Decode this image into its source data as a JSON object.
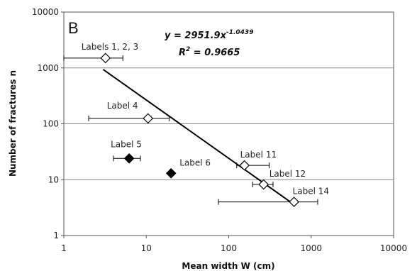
{
  "chart_data": {
    "type": "scatter",
    "panel_label": "B",
    "xlabel": "Mean width W (cm)",
    "ylabel": "Number of fractures n",
    "x_scale": "log",
    "y_scale": "log",
    "xlim": [
      1,
      10000
    ],
    "ylim": [
      1,
      10000
    ],
    "x_ticks": [
      "1",
      "10",
      "100",
      "1000",
      "10000"
    ],
    "y_ticks": [
      "1",
      "10",
      "100",
      "1000",
      "10000"
    ],
    "grid": "horizontal",
    "equation": {
      "y_prefix": "y = 2951.9x",
      "y_exponent": "-1.0439",
      "r_prefix": "R",
      "r_exponent": "2",
      "r_value": " = 0.9665"
    },
    "points": [
      {
        "label": "Labels 1, 2, 3",
        "x": 3.2,
        "y": 1500,
        "xerr": [
          1,
          5.2
        ],
        "filled": false
      },
      {
        "label": "Label 4",
        "x": 10.5,
        "y": 125,
        "xerr": [
          2,
          19
        ],
        "filled": false
      },
      {
        "label": "Label 5",
        "x": 6.2,
        "y": 24,
        "xerr": [
          4,
          8.5
        ],
        "filled": true
      },
      {
        "label": "Label 6",
        "x": 20,
        "y": 13,
        "xerr": null,
        "filled": true
      },
      {
        "label": "Label 11",
        "x": 155,
        "y": 18,
        "xerr": [
          125,
          310
        ],
        "filled": false
      },
      {
        "label": "Label 12",
        "x": 265,
        "y": 8.2,
        "xerr": [
          195,
          345
        ],
        "filled": false
      },
      {
        "label": "Label 14",
        "x": 620,
        "y": 4,
        "xerr": [
          75,
          1200
        ],
        "filled": false
      }
    ],
    "fit_line": {
      "x_start": 3,
      "x_end": 620,
      "a": 2951.9,
      "b": -1.0439
    }
  }
}
